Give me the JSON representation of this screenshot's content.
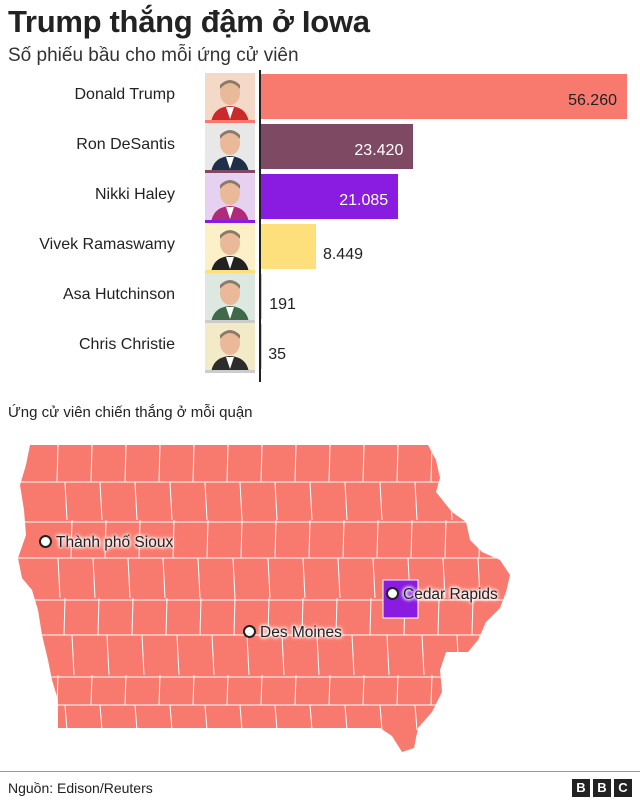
{
  "header": {
    "title": "Trump thắng đậm ở Iowa",
    "subtitle": "Số phiếu bầu cho mỗi ứng cử viên"
  },
  "chart_data": {
    "type": "bar",
    "orientation": "horizontal",
    "categories": [
      "Donald Trump",
      "Ron DeSantis",
      "Nikki Haley",
      "Vivek Ramaswamy",
      "Asa Hutchinson",
      "Chris Christie"
    ],
    "values": [
      56260,
      23420,
      21085,
      8449,
      191,
      35
    ],
    "value_labels": [
      "56.260",
      "23.420",
      "21.085",
      "8.449",
      "191",
      "35"
    ],
    "colors": [
      "#f87a6e",
      "#7e4a63",
      "#8a1be0",
      "#fde07c",
      "#cccccc",
      "#cccccc"
    ],
    "xlim": [
      0,
      56260
    ],
    "title": "Trump thắng đậm ở Iowa",
    "subtitle": "Số phiếu bầu cho mỗi ứng cử viên",
    "xlabel": "",
    "ylabel": "",
    "grid": false
  },
  "map": {
    "title": "Ứng cử viên chiến thắng ở mỗi quận",
    "base_color": "#f87a6e",
    "highlight_color": "#8a1be0",
    "border_color": "#ffffff",
    "cities": {
      "sioux": "Thành phố Sioux",
      "des_moines": "Des Moines",
      "cedar_rapids": "Cedar Rapids"
    }
  },
  "footer": {
    "source": "Nguồn: Edison/Reuters",
    "logo_letters": [
      "B",
      "B",
      "C"
    ]
  }
}
